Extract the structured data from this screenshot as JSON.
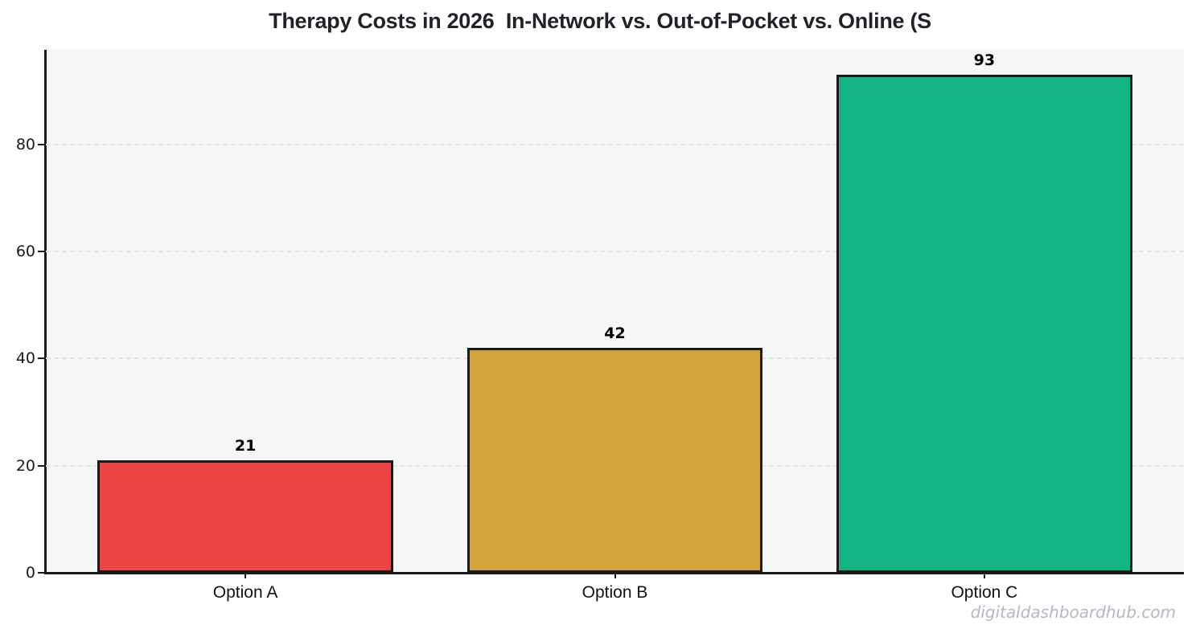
{
  "chart_data": {
    "type": "bar",
    "title": "Therapy Costs in 2026  In-Network vs. Out-of-Pocket vs. Online (S",
    "categories": [
      "Option A",
      "Option B",
      "Option C"
    ],
    "values": [
      21,
      42,
      93
    ],
    "value_labels": [
      "21",
      "42",
      "93"
    ],
    "bar_colors": [
      "#ee4444",
      "#d4a43c",
      "#13b583"
    ],
    "bar_edge_color": "#1a1a1a",
    "xlabel": "",
    "ylabel": "",
    "yticks": [
      0,
      20,
      40,
      60,
      80
    ],
    "ylim": [
      0,
      97.65
    ],
    "grid": "horizontal dashed gridlines",
    "legend": "none",
    "plot_background": "#f5f6f8",
    "figure_background": "#ffffff"
  },
  "watermark": {
    "text": "digitaldashboardhub.com"
  }
}
